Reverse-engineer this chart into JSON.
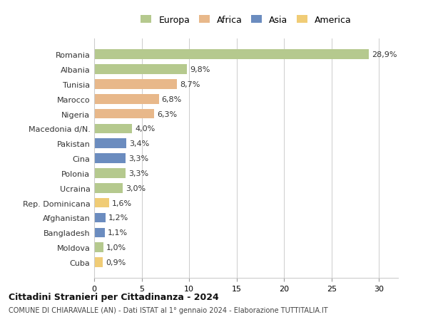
{
  "countries": [
    "Romania",
    "Albania",
    "Tunisia",
    "Marocco",
    "Nigeria",
    "Macedonia d/N.",
    "Pakistan",
    "Cina",
    "Polonia",
    "Ucraina",
    "Rep. Dominicana",
    "Afghanistan",
    "Bangladesh",
    "Moldova",
    "Cuba"
  ],
  "values": [
    28.9,
    9.8,
    8.7,
    6.8,
    6.3,
    4.0,
    3.4,
    3.3,
    3.3,
    3.0,
    1.6,
    1.2,
    1.1,
    1.0,
    0.9
  ],
  "labels": [
    "28,9%",
    "9,8%",
    "8,7%",
    "6,8%",
    "6,3%",
    "4,0%",
    "3,4%",
    "3,3%",
    "3,3%",
    "3,0%",
    "1,6%",
    "1,2%",
    "1,1%",
    "1,0%",
    "0,9%"
  ],
  "continents": [
    "Europa",
    "Europa",
    "Africa",
    "Africa",
    "Africa",
    "Europa",
    "Asia",
    "Asia",
    "Europa",
    "Europa",
    "America",
    "Asia",
    "Asia",
    "Europa",
    "America"
  ],
  "colors": {
    "Europa": "#b5c98e",
    "Africa": "#e8b88a",
    "Asia": "#6b8cbf",
    "America": "#f0cc76"
  },
  "legend_order": [
    "Europa",
    "Africa",
    "Asia",
    "America"
  ],
  "xlim": [
    0,
    32
  ],
  "xticks": [
    0,
    5,
    10,
    15,
    20,
    25,
    30
  ],
  "title": "Cittadini Stranieri per Cittadinanza - 2024",
  "subtitle": "COMUNE DI CHIARAVALLE (AN) - Dati ISTAT al 1° gennaio 2024 - Elaborazione TUTTITALIA.IT",
  "background_color": "#ffffff",
  "grid_color": "#cccccc",
  "bar_height": 0.65
}
